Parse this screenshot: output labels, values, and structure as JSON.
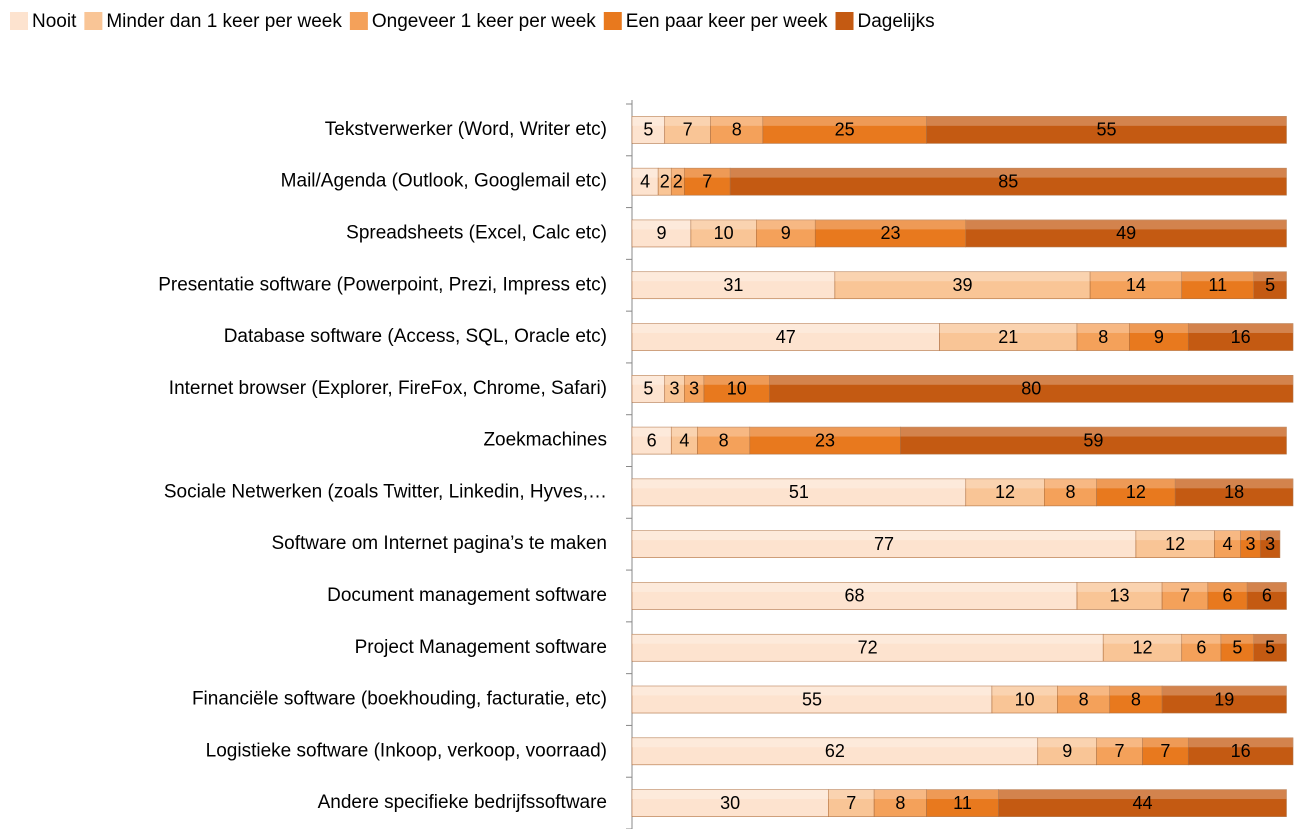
{
  "chart_data": {
    "type": "stacked-bar-horizontal",
    "categories": [
      "Tekstverwerker (Word, Writer etc)",
      "Mail/Agenda (Outlook, Googlemail etc)",
      "Spreadsheets (Excel, Calc etc)",
      "Presentatie software (Powerpoint, Prezi, Impress etc)",
      "Database software (Access, SQL, Oracle etc)",
      "Internet browser (Explorer, FireFox, Chrome, Safari)",
      "Zoekmachines",
      "Sociale Netwerken (zoals Twitter, Linkedin, Hyves,…",
      "Software om Internet pagina’s te maken",
      "Document management software",
      "Project Management software",
      "Financiële software (boekhouding, facturatie, etc)",
      "Logistieke software (Inkoop, verkoop, voorraad)",
      "Andere specifieke bedrijfssoftware"
    ],
    "series": [
      {
        "name": "Nooit",
        "color": "#fde3cf",
        "values": [
          5,
          4,
          9,
          31,
          47,
          5,
          6,
          51,
          77,
          68,
          72,
          55,
          62,
          30
        ]
      },
      {
        "name": "Minder dan 1 keer per week",
        "color": "#f9c596",
        "values": [
          7,
          2,
          10,
          39,
          21,
          3,
          4,
          12,
          12,
          13,
          12,
          10,
          9,
          7
        ]
      },
      {
        "name": "Ongeveer 1 keer per week",
        "color": "#f4a15a",
        "values": [
          8,
          2,
          9,
          14,
          8,
          3,
          8,
          8,
          4,
          7,
          6,
          8,
          7,
          8
        ]
      },
      {
        "name": "Een paar keer per week",
        "color": "#e8791e",
        "values": [
          25,
          7,
          23,
          11,
          9,
          10,
          23,
          12,
          3,
          6,
          5,
          8,
          7,
          11
        ]
      },
      {
        "name": "Dagelijks",
        "color": "#c45a12",
        "values": [
          55,
          85,
          49,
          5,
          16,
          80,
          59,
          18,
          3,
          6,
          5,
          19,
          16,
          44
        ]
      }
    ],
    "xlim": [
      0,
      101
    ]
  }
}
